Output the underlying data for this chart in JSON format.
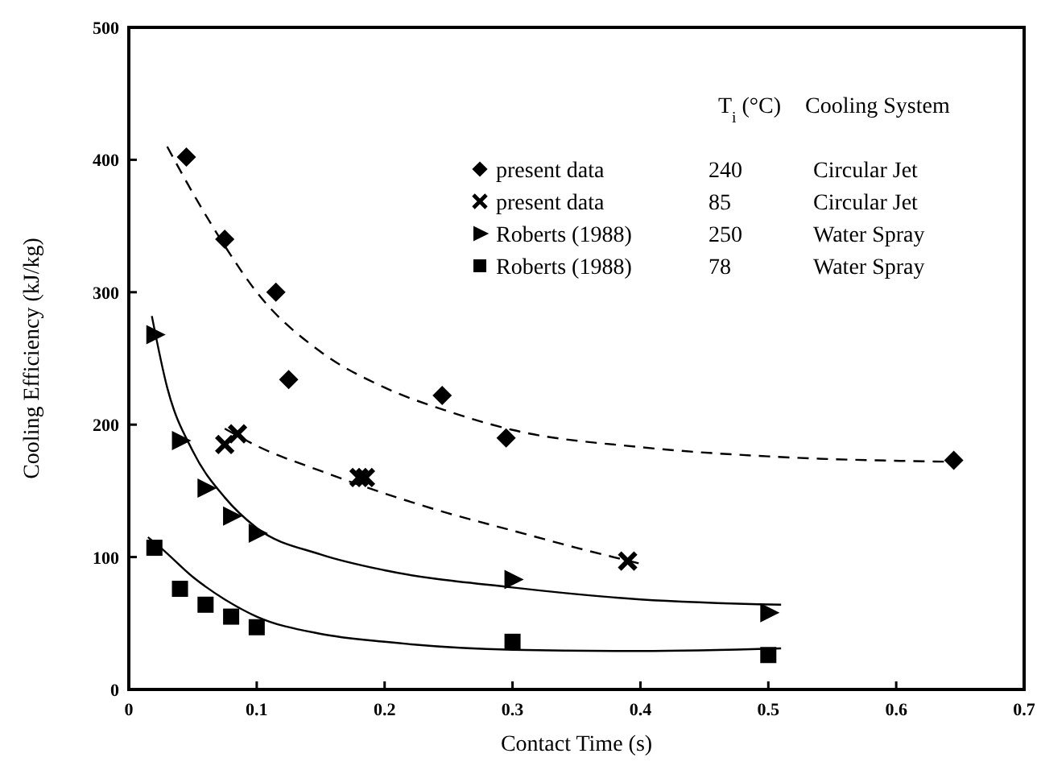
{
  "chart_data": {
    "type": "scatter",
    "xlabel": "Contact Time (s)",
    "ylabel": "Cooling Efficiency (kJ/kg)",
    "xlim": [
      0,
      0.7
    ],
    "ylim": [
      0,
      500
    ],
    "xticks": [
      0,
      0.1,
      0.2,
      0.3,
      0.4,
      0.5,
      0.6,
      0.7
    ],
    "yticks": [
      0,
      100,
      200,
      300,
      400,
      500
    ],
    "legend": "top right",
    "legend_title": "T$_{i}$ (°C)",
    "annotations": [
      "Cooling System",
      "240",
      "Circular Jet",
      "85",
      "Circular Jet",
      "250",
      "Water Spray",
      "78",
      "Water Spray"
    ],
    "series": [
      {
        "name": "present data",
        "color": "#000000",
        "marker": "diamond",
        "x": [
          0.045,
          0.075,
          0.115,
          0.125,
          0.245,
          0.295,
          0.645
        ],
        "values": [
          402,
          340,
          300,
          234,
          222,
          190,
          173
        ]
      },
      {
        "name": "present data",
        "color": "#000000",
        "marker": "cross",
        "x": [
          0.075,
          0.085,
          0.18,
          0.185,
          0.39
        ],
        "values": [
          185,
          193,
          160,
          160,
          97
        ]
      },
      {
        "name": "Roberts (1988)",
        "color": "#000000",
        "marker": "triangle",
        "x": [
          0.02,
          0.04,
          0.06,
          0.08,
          0.1,
          0.3,
          0.5
        ],
        "values": [
          268,
          188,
          152,
          131,
          118,
          83,
          58
        ]
      },
      {
        "name": "Roberts (1988)",
        "color": "#000000",
        "marker": "square",
        "x": [
          0.02,
          0.04,
          0.06,
          0.08,
          0.1,
          0.3,
          0.5
        ],
        "values": [
          107,
          76,
          64,
          55,
          47,
          36,
          26
        ]
      },
      {
        "type": "line",
        "color": "#000000",
        "line_style": "dashed",
        "x": [
          0.03,
          0.05,
          0.075,
          0.1,
          0.15,
          0.2,
          0.25,
          0.3,
          0.4,
          0.5,
          0.64
        ],
        "values": [
          410,
          375,
          335,
          300,
          255,
          228,
          210,
          196,
          183,
          176,
          172
        ]
      },
      {
        "type": "line",
        "color": "#000000",
        "line_style": "dashed",
        "x": [
          0.075,
          0.1,
          0.15,
          0.2,
          0.25,
          0.3,
          0.35,
          0.4
        ],
        "values": [
          197,
          184,
          165,
          148,
          133,
          120,
          107,
          95
        ]
      },
      {
        "type": "line",
        "color": "#000000",
        "line_style": "solid",
        "x": [
          0.018,
          0.03,
          0.05,
          0.075,
          0.1,
          0.15,
          0.2,
          0.3,
          0.4,
          0.51
        ],
        "values": [
          282,
          228,
          180,
          145,
          122,
          102,
          90,
          77,
          68,
          64
        ]
      },
      {
        "type": "line",
        "color": "#000000",
        "line_style": "solid",
        "x": [
          0.015,
          0.025,
          0.05,
          0.075,
          0.1,
          0.15,
          0.2,
          0.3,
          0.4,
          0.51
        ],
        "values": [
          115,
          107,
          85,
          68,
          55,
          42,
          36,
          30,
          29,
          31
        ]
      }
    ]
  }
}
